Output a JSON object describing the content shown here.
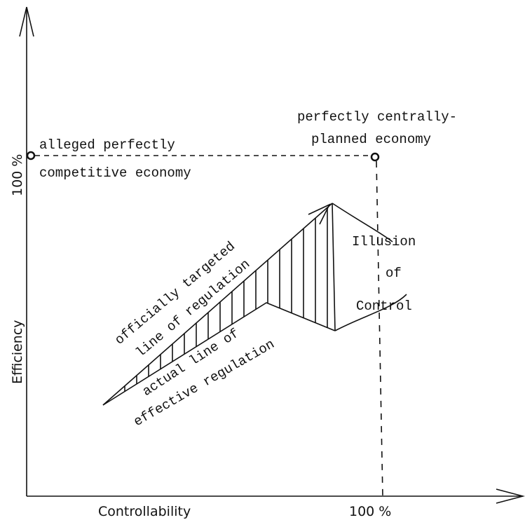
{
  "axes": {
    "y_label": "Efficiency",
    "x_label": "Controllability",
    "y_max_label": "100 %",
    "x_max_label": "100 %"
  },
  "points": [
    {
      "lines": [
        "alleged perfectly",
        "competitive economy"
      ]
    },
    {
      "lines": [
        "perfectly centrally-",
        "planned economy"
      ]
    }
  ],
  "lines": [
    {
      "lines": [
        "officially targeted",
        "line of regulation"
      ]
    },
    {
      "lines": [
        "actual line of",
        "effective regulation"
      ]
    }
  ],
  "gap_label": [
    "Illusion",
    "of",
    "Control"
  ]
}
